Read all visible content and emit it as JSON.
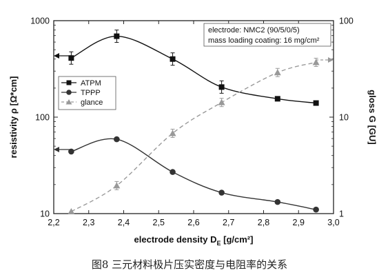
{
  "caption": "图8   三元材料极片压实密度与电阻率的关系",
  "chart_data": {
    "type": "line",
    "xlabel": "electrode density D",
    "xlabel_sub": "E",
    "xlabel_unit": " [g/cm²]",
    "ylabel_left": "resistivity ρ [Ω*cm]",
    "ylabel_right": "gloss G [GU]",
    "xlim": [
      2.2,
      3.0
    ],
    "x_ticks": [
      "2,2",
      "2,3",
      "2,4",
      "2,5",
      "2,6",
      "2,7",
      "2,8",
      "2,9",
      "3,0"
    ],
    "y_left": {
      "scale": "log",
      "lim": [
        10,
        1000
      ],
      "ticks": [
        "10",
        "100",
        "1000"
      ]
    },
    "y_right": {
      "scale": "log",
      "lim": [
        1,
        100
      ],
      "ticks": [
        "1",
        "10",
        "100"
      ]
    },
    "annotation": [
      "electrode: NMC2 (90/5/0/5)",
      "mass loading coating: 16 mg/cm²"
    ],
    "legend_position": "upper-left",
    "series": [
      {
        "name": "ATPM",
        "axis": "left",
        "marker": "square",
        "color": "#111111",
        "line": "solid",
        "x": [
          2.25,
          2.38,
          2.54,
          2.68,
          2.84,
          2.95
        ],
        "y": [
          410,
          690,
          400,
          205,
          155,
          140
        ]
      },
      {
        "name": "TPPP",
        "axis": "left",
        "marker": "circle",
        "color": "#333333",
        "line": "solid",
        "x": [
          2.25,
          2.38,
          2.54,
          2.68,
          2.84,
          2.95
        ],
        "y": [
          44,
          59,
          27,
          16.5,
          13.2,
          11
        ]
      },
      {
        "name": "glance",
        "axis": "right",
        "marker": "triangle",
        "color": "#999999",
        "line": "dashed",
        "x": [
          2.25,
          2.38,
          2.54,
          2.68,
          2.84,
          2.95
        ],
        "y": [
          1.05,
          1.95,
          6.8,
          14.2,
          29,
          37
        ]
      }
    ]
  }
}
